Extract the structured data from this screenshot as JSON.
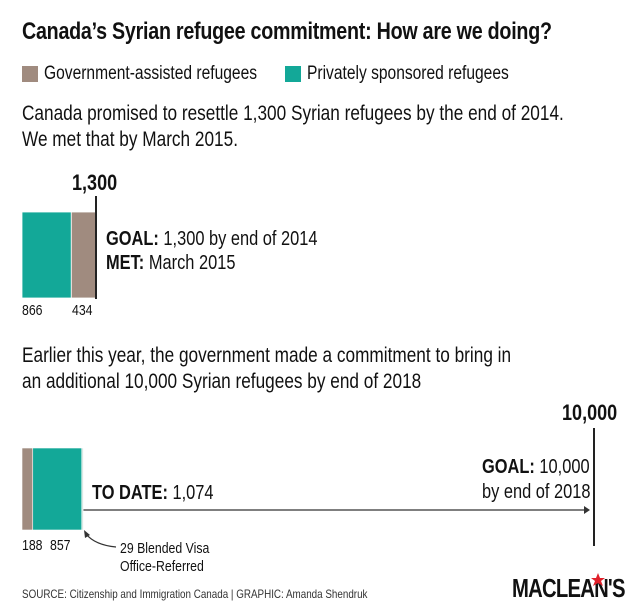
{
  "title": "Canada’s Syrian refugee commitment: How are we doing?",
  "colors": {
    "government": "#a08b7f",
    "private": "#13a898",
    "line": "#222222",
    "brand_red": "#e0202a"
  },
  "legend": [
    {
      "label": "Government-assisted refugees",
      "color": "#a08b7f"
    },
    {
      "label": "Privately sponsored refugees",
      "color": "#13a898"
    }
  ],
  "section1": {
    "intro_line1": "Canada promised to resettle 1,300 Syrian refugees by the end of 2014.",
    "intro_line2": "We met that by March 2015.",
    "goal_value_label": "1,300",
    "goal_label": "GOAL:",
    "goal_text": "1,300 by end of 2014",
    "met_label": "MET:",
    "met_text": "March 2015"
  },
  "section2": {
    "intro_line1": "Earlier this year, the government made a commitment to bring in",
    "intro_line2": "an additional 10,000 Syrian refugees by end of 2018",
    "goal_value_label": "10,000",
    "to_date_label": "TO DATE:",
    "to_date_value": "1,074",
    "goal_label": "GOAL:",
    "goal_text_line1": "10,000",
    "goal_text_line2": "by end of 2018",
    "annotation_line1": "29 Blended Visa",
    "annotation_line2": "Office-Referred"
  },
  "chart_data": [
    {
      "type": "bar",
      "orientation": "horizontal-stacked",
      "goal": 1300,
      "series": [
        {
          "name": "Privately sponsored refugees",
          "value": 866,
          "value_label": "866"
        },
        {
          "name": "Government-assisted refugees",
          "value": 434,
          "value_label": "434"
        }
      ]
    },
    {
      "type": "bar",
      "orientation": "horizontal-stacked",
      "goal": 10000,
      "total": 1074,
      "series": [
        {
          "name": "Government-assisted refugees",
          "value": 188,
          "value_label": "188"
        },
        {
          "name": "Privately sponsored refugees",
          "value": 857,
          "value_label": "857"
        },
        {
          "name": "Blended Visa Office-Referred",
          "value": 29
        }
      ]
    }
  ],
  "footer": {
    "source": "SOURCE: Citizenship and Immigration Canada  |  GRAPHIC: Amanda Shendruk",
    "logo": "MACLEAN'S"
  }
}
